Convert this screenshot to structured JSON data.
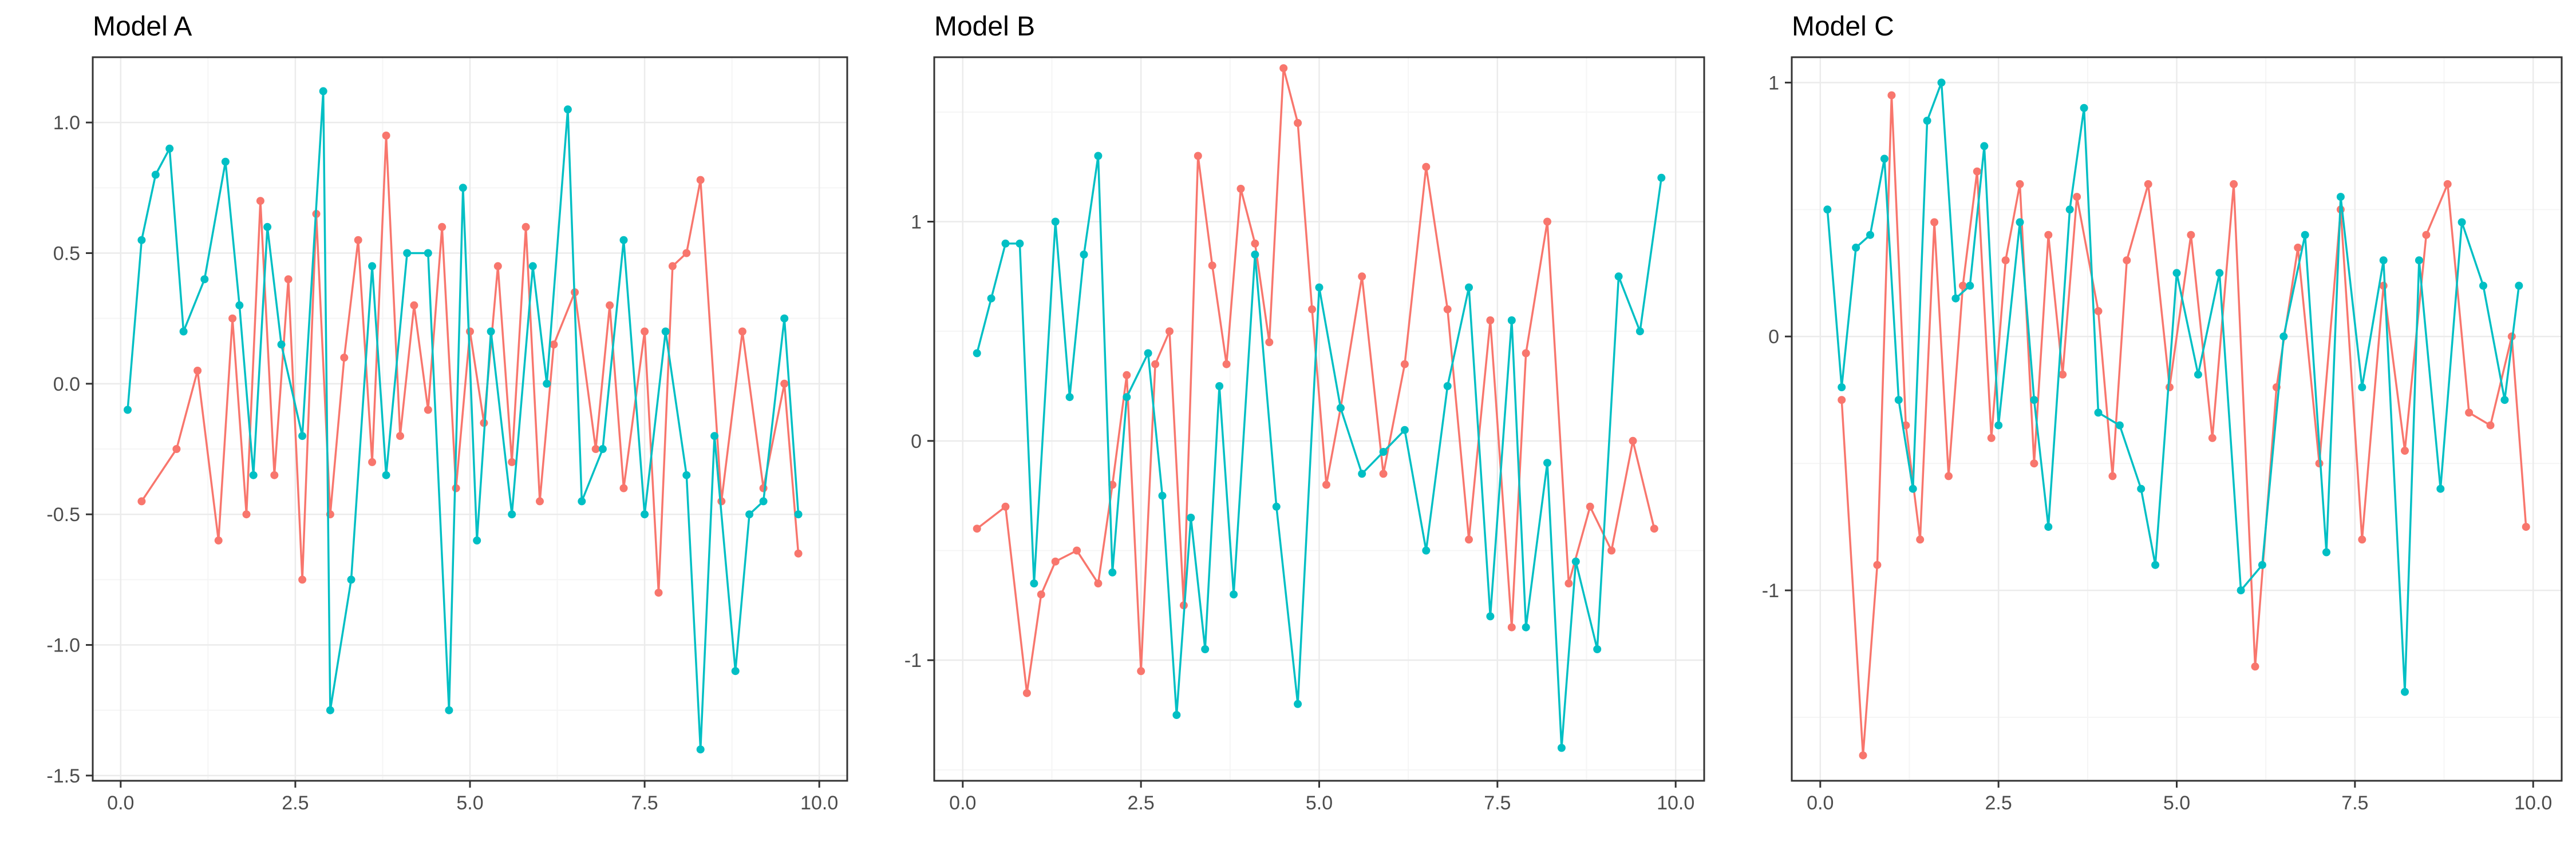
{
  "colors": {
    "series_red": "#F8766D",
    "series_teal": "#00BFC4",
    "grid_major": "#EBEBEB",
    "grid_minor": "#F5F5F5",
    "panel_border": "#333333",
    "tick_text": "#4D4D4D",
    "background": "#FFFFFF"
  },
  "chart_data": [
    {
      "type": "line",
      "title": "Model A",
      "xlabel": "",
      "ylabel": "",
      "xlim": [
        -0.4,
        10.4
      ],
      "ylim": [
        -1.52,
        1.25
      ],
      "x_ticks": [
        0,
        2.5,
        5,
        7.5,
        10
      ],
      "x_tick_labels": [
        "0.0",
        "2.5",
        "5.0",
        "7.5",
        "10.0"
      ],
      "y_ticks": [
        -1.5,
        -1.0,
        -0.5,
        0.0,
        0.5,
        1.0
      ],
      "y_tick_labels": [
        "-1.5",
        "-1.0",
        "-0.5",
        "0.0",
        "0.5",
        "1.0"
      ],
      "grid": true,
      "legend": "none",
      "series": [
        {
          "color": "#F8766D",
          "x": [
            0.3,
            0.8,
            1.1,
            1.4,
            1.6,
            1.8,
            2.0,
            2.2,
            2.4,
            2.6,
            2.8,
            3.0,
            3.2,
            3.4,
            3.6,
            3.8,
            4.0,
            4.2,
            4.4,
            4.6,
            4.8,
            5.0,
            5.2,
            5.4,
            5.6,
            5.8,
            6.0,
            6.2,
            6.5,
            6.8,
            7.0,
            7.2,
            7.5,
            7.7,
            7.9,
            8.1,
            8.3,
            8.6,
            8.9,
            9.2,
            9.5,
            9.7
          ],
          "y": [
            -0.45,
            -0.25,
            0.05,
            -0.6,
            0.25,
            -0.5,
            0.7,
            -0.35,
            0.4,
            -0.75,
            0.65,
            -0.5,
            0.1,
            0.55,
            -0.3,
            0.95,
            -0.2,
            0.3,
            -0.1,
            0.6,
            -0.4,
            0.2,
            -0.15,
            0.45,
            -0.3,
            0.6,
            -0.45,
            0.15,
            0.35,
            -0.25,
            0.3,
            -0.4,
            0.2,
            -0.8,
            0.45,
            0.5,
            0.78,
            -0.45,
            0.2,
            -0.4,
            0.0,
            -0.65
          ]
        },
        {
          "color": "#00BFC4",
          "x": [
            0.1,
            0.3,
            0.5,
            0.7,
            0.9,
            1.2,
            1.5,
            1.7,
            1.9,
            2.1,
            2.3,
            2.6,
            2.9,
            3.0,
            3.3,
            3.6,
            3.8,
            4.1,
            4.4,
            4.7,
            4.9,
            5.1,
            5.3,
            5.6,
            5.9,
            6.1,
            6.4,
            6.6,
            6.9,
            7.2,
            7.5,
            7.8,
            8.1,
            8.3,
            8.5,
            8.8,
            9.0,
            9.2,
            9.5,
            9.7
          ],
          "y": [
            -0.1,
            0.55,
            0.8,
            0.9,
            0.2,
            0.4,
            0.85,
            0.3,
            -0.35,
            0.6,
            0.15,
            -0.2,
            1.12,
            -1.25,
            -0.75,
            0.45,
            -0.35,
            0.5,
            0.5,
            -1.25,
            0.75,
            -0.6,
            0.2,
            -0.5,
            0.45,
            0.0,
            1.05,
            -0.45,
            -0.25,
            0.55,
            -0.5,
            0.2,
            -0.35,
            -1.4,
            -0.2,
            -1.1,
            -0.5,
            -0.45,
            0.25,
            -0.5
          ]
        }
      ]
    },
    {
      "type": "line",
      "title": "Model B",
      "xlabel": "",
      "ylabel": "",
      "xlim": [
        -0.4,
        10.4
      ],
      "ylim": [
        -1.55,
        1.75
      ],
      "x_ticks": [
        0,
        2.5,
        5,
        7.5,
        10
      ],
      "x_tick_labels": [
        "0.0",
        "2.5",
        "5.0",
        "7.5",
        "10.0"
      ],
      "y_ticks": [
        -1,
        0,
        1
      ],
      "y_tick_labels": [
        "-1",
        "0",
        "1"
      ],
      "grid": true,
      "legend": "none",
      "series": [
        {
          "color": "#F8766D",
          "x": [
            0.2,
            0.6,
            0.9,
            1.1,
            1.3,
            1.6,
            1.9,
            2.1,
            2.3,
            2.5,
            2.7,
            2.9,
            3.1,
            3.3,
            3.5,
            3.7,
            3.9,
            4.1,
            4.3,
            4.5,
            4.7,
            4.9,
            5.1,
            5.3,
            5.6,
            5.9,
            6.2,
            6.5,
            6.8,
            7.1,
            7.4,
            7.7,
            7.9,
            8.2,
            8.5,
            8.8,
            9.1,
            9.4,
            9.7
          ],
          "y": [
            -0.4,
            -0.3,
            -1.15,
            -0.7,
            -0.55,
            -0.5,
            -0.65,
            -0.2,
            0.3,
            -1.05,
            0.35,
            0.5,
            -0.75,
            1.3,
            0.8,
            0.35,
            1.15,
            0.9,
            0.45,
            1.7,
            1.45,
            0.6,
            -0.2,
            0.15,
            0.75,
            -0.15,
            0.35,
            1.25,
            0.6,
            -0.45,
            0.55,
            -0.85,
            0.4,
            1.0,
            -0.65,
            -0.3,
            -0.5,
            0.0,
            -0.4
          ]
        },
        {
          "color": "#00BFC4",
          "x": [
            0.2,
            0.4,
            0.6,
            0.8,
            1.0,
            1.3,
            1.5,
            1.7,
            1.9,
            2.1,
            2.3,
            2.6,
            2.8,
            3.0,
            3.2,
            3.4,
            3.6,
            3.8,
            4.1,
            4.4,
            4.7,
            5.0,
            5.3,
            5.6,
            5.9,
            6.2,
            6.5,
            6.8,
            7.1,
            7.4,
            7.7,
            7.9,
            8.2,
            8.4,
            8.6,
            8.9,
            9.2,
            9.5,
            9.8
          ],
          "y": [
            0.4,
            0.65,
            0.9,
            0.9,
            -0.65,
            1.0,
            0.2,
            0.85,
            1.3,
            -0.6,
            0.2,
            0.4,
            -0.25,
            -1.25,
            -0.35,
            -0.95,
            0.25,
            -0.7,
            0.85,
            -0.3,
            -1.2,
            0.7,
            0.15,
            -0.15,
            -0.05,
            0.05,
            -0.5,
            0.25,
            0.7,
            -0.8,
            0.55,
            -0.85,
            -0.1,
            -1.4,
            -0.55,
            -0.95,
            0.75,
            0.5,
            1.2
          ]
        }
      ]
    },
    {
      "type": "line",
      "title": "Model C",
      "xlabel": "",
      "ylabel": "",
      "xlim": [
        -0.4,
        10.4
      ],
      "ylim": [
        -1.75,
        1.1
      ],
      "x_ticks": [
        0,
        2.5,
        5,
        7.5,
        10
      ],
      "x_tick_labels": [
        "0.0",
        "2.5",
        "5.0",
        "7.5",
        "10.0"
      ],
      "y_ticks": [
        -1,
        0,
        1
      ],
      "y_tick_labels": [
        "-1",
        "0",
        "1"
      ],
      "grid": true,
      "legend": "none",
      "series": [
        {
          "color": "#F8766D",
          "x": [
            0.3,
            0.6,
            0.8,
            1.0,
            1.2,
            1.4,
            1.6,
            1.8,
            2.0,
            2.2,
            2.4,
            2.6,
            2.8,
            3.0,
            3.2,
            3.4,
            3.6,
            3.9,
            4.1,
            4.3,
            4.6,
            4.9,
            5.2,
            5.5,
            5.8,
            6.1,
            6.4,
            6.7,
            7.0,
            7.3,
            7.6,
            7.9,
            8.2,
            8.5,
            8.8,
            9.1,
            9.4,
            9.7,
            9.9
          ],
          "y": [
            -0.25,
            -1.65,
            -0.9,
            0.95,
            -0.35,
            -0.8,
            0.45,
            -0.55,
            0.2,
            0.65,
            -0.4,
            0.3,
            0.6,
            -0.5,
            0.4,
            -0.15,
            0.55,
            0.1,
            -0.55,
            0.3,
            0.6,
            -0.2,
            0.4,
            -0.4,
            0.6,
            -1.3,
            -0.2,
            0.35,
            -0.5,
            0.5,
            -0.8,
            0.2,
            -0.45,
            0.4,
            0.6,
            -0.3,
            -0.35,
            0.0,
            -0.75
          ]
        },
        {
          "color": "#00BFC4",
          "x": [
            0.1,
            0.3,
            0.5,
            0.7,
            0.9,
            1.1,
            1.3,
            1.5,
            1.7,
            1.9,
            2.1,
            2.3,
            2.5,
            2.8,
            3.0,
            3.2,
            3.5,
            3.7,
            3.9,
            4.2,
            4.5,
            4.7,
            5.0,
            5.3,
            5.6,
            5.9,
            6.2,
            6.5,
            6.8,
            7.1,
            7.3,
            7.6,
            7.9,
            8.2,
            8.4,
            8.7,
            9.0,
            9.3,
            9.6,
            9.8
          ],
          "y": [
            0.5,
            -0.2,
            0.35,
            0.4,
            0.7,
            -0.25,
            -0.6,
            0.85,
            1.0,
            0.15,
            0.2,
            0.75,
            -0.35,
            0.45,
            -0.25,
            -0.75,
            0.5,
            0.9,
            -0.3,
            -0.35,
            -0.6,
            -0.9,
            0.25,
            -0.15,
            0.25,
            -1.0,
            -0.9,
            0.0,
            0.4,
            -0.85,
            0.55,
            -0.2,
            0.3,
            -1.4,
            0.3,
            -0.6,
            0.45,
            0.2,
            -0.25,
            0.2
          ]
        }
      ]
    }
  ]
}
